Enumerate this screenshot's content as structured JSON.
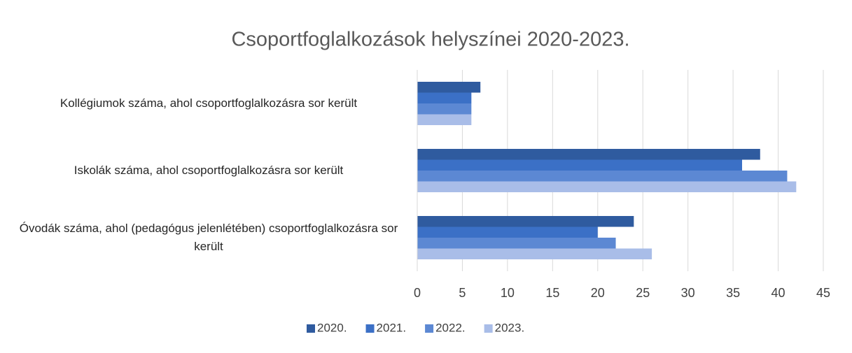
{
  "chart_data": {
    "type": "hbar",
    "title": "Csoportfoglalkozások helyszínei 2020-2023.",
    "categories": [
      "Kollégiumok száma, ahol csoportfoglalkozásra sor került",
      "Iskolák száma, ahol csoportfoglalkozásra sor került",
      "Óvodák száma, ahol (pedagógus jelenlétében) csoportfoglalkozásra sor került"
    ],
    "series": [
      {
        "name": "2020.",
        "color": "#2f5b9f",
        "values": [
          7,
          38,
          24
        ]
      },
      {
        "name": "2021.",
        "color": "#3b70c6",
        "values": [
          6,
          36,
          20
        ]
      },
      {
        "name": "2022.",
        "color": "#5c88d3",
        "values": [
          6,
          41,
          22
        ]
      },
      {
        "name": "2023.",
        "color": "#a9bde8",
        "values": [
          6,
          42,
          26
        ]
      }
    ],
    "xlim": [
      0,
      45
    ],
    "xticks": [
      0,
      5,
      10,
      15,
      20,
      25,
      30,
      35,
      40,
      45
    ],
    "grid": true,
    "legend": "bottom"
  }
}
